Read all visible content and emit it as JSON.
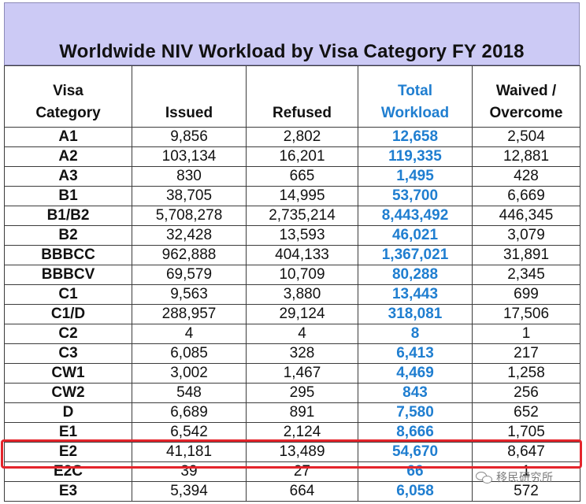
{
  "title": "Worldwide NIV Workload by Visa Category FY 2018",
  "header": {
    "category": [
      "Visa",
      "Category"
    ],
    "issued": [
      "",
      "Issued"
    ],
    "refused": [
      "",
      "Refused"
    ],
    "total": [
      "Total",
      "Workload"
    ],
    "waived": [
      "Waived /",
      "Overcome"
    ]
  },
  "rows": [
    {
      "category": "A1",
      "issued": "9,856",
      "refused": "2,802",
      "total": "12,658",
      "waived": "2,504"
    },
    {
      "category": "A2",
      "issued": "103,134",
      "refused": "16,201",
      "total": "119,335",
      "waived": "12,881"
    },
    {
      "category": "A3",
      "issued": "830",
      "refused": "665",
      "total": "1,495",
      "waived": "428"
    },
    {
      "category": "B1",
      "issued": "38,705",
      "refused": "14,995",
      "total": "53,700",
      "waived": "6,669"
    },
    {
      "category": "B1/B2",
      "issued": "5,708,278",
      "refused": "2,735,214",
      "total": "8,443,492",
      "waived": "446,345"
    },
    {
      "category": "B2",
      "issued": "32,428",
      "refused": "13,593",
      "total": "46,021",
      "waived": "3,079"
    },
    {
      "category": "BBBCC",
      "issued": "962,888",
      "refused": "404,133",
      "total": "1,367,021",
      "waived": "31,891"
    },
    {
      "category": "BBBCV",
      "issued": "69,579",
      "refused": "10,709",
      "total": "80,288",
      "waived": "2,345"
    },
    {
      "category": "C1",
      "issued": "9,563",
      "refused": "3,880",
      "total": "13,443",
      "waived": "699"
    },
    {
      "category": "C1/D",
      "issued": "288,957",
      "refused": "29,124",
      "total": "318,081",
      "waived": "17,506"
    },
    {
      "category": "C2",
      "issued": "4",
      "refused": "4",
      "total": "8",
      "waived": "1"
    },
    {
      "category": "C3",
      "issued": "6,085",
      "refused": "328",
      "total": "6,413",
      "waived": "217"
    },
    {
      "category": "CW1",
      "issued": "3,002",
      "refused": "1,467",
      "total": "4,469",
      "waived": "1,258"
    },
    {
      "category": "CW2",
      "issued": "548",
      "refused": "295",
      "total": "843",
      "waived": "256"
    },
    {
      "category": "D",
      "issued": "6,689",
      "refused": "891",
      "total": "7,580",
      "waived": "652"
    },
    {
      "category": "E1",
      "issued": "6,542",
      "refused": "2,124",
      "total": "8,666",
      "waived": "1,705"
    },
    {
      "category": "E2",
      "issued": "41,181",
      "refused": "13,489",
      "total": "54,670",
      "waived": "8,647"
    },
    {
      "category": "E2C",
      "issued": "39",
      "refused": "27",
      "total": "66",
      "waived": "1"
    },
    {
      "category": "E3",
      "issued": "5,394",
      "refused": "664",
      "total": "6,058",
      "waived": "572"
    }
  ],
  "highlighted_row": "E2",
  "watermark": {
    "text": "移民研究所",
    "icon": "wechat-icon"
  },
  "colors": {
    "title_band": "#cccaf5",
    "total_column": "#1f7ed0",
    "highlight_box": "#e4242b"
  }
}
